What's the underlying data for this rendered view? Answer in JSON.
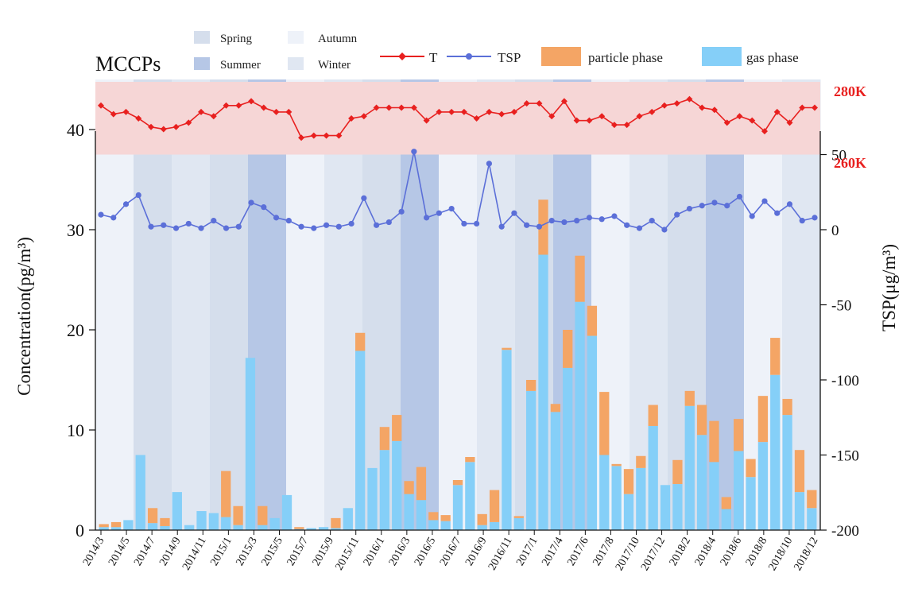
{
  "chart_data": {
    "type": "bar+line",
    "title": "MCCPs",
    "ylabel_left": "Concentration(pg/m³)",
    "ylabel_right": "TSP(μg/m³)",
    "ylim_left": [
      0,
      45
    ],
    "ylim_right": [
      -200,
      100
    ],
    "left_ticks": [
      "0",
      "10",
      "20",
      "30",
      "40"
    ],
    "right_ticks": [
      "-200",
      "-150",
      "-100",
      "-50",
      "0",
      "50"
    ],
    "temperature_band_labels": [
      "280K",
      "260K"
    ],
    "x_tick_labels": [
      "2014/3",
      "2014/5",
      "2014/7",
      "2014/9",
      "2014/11",
      "2015/1",
      "2015/3",
      "2015/5",
      "2015/7",
      "2015/9",
      "2015/11",
      "2016/1",
      "2016/3",
      "2016/5",
      "2016/7",
      "2016/9",
      "2016/11",
      "2017/1",
      "2017/4",
      "2017/6",
      "2017/8",
      "2017/10",
      "2017/12",
      "2018/2",
      "2018/4",
      "2018/6",
      "2018/8",
      "2018/10",
      "2018/12"
    ],
    "legend": {
      "seasons": [
        "Spring",
        "Summer",
        "Autumn",
        "Winter"
      ],
      "series": [
        "T",
        "TSP",
        "particle phase",
        "gas phase"
      ]
    },
    "colors": {
      "T": "#e8201f",
      "TSP": "#5b6fd8",
      "particle": "#f4a565",
      "gas": "#85cff8",
      "temp_band": "#f6d6d6",
      "spring": "#d5deec",
      "summer": "#b6c7e6",
      "autumn": "#eef2f9",
      "winter": "#e0e7f2"
    },
    "season_sequence": [
      "autumn",
      "spring",
      "winter",
      "spring",
      "summer",
      "autumn",
      "winter",
      "spring",
      "summer",
      "autumn",
      "winter",
      "spring",
      "summer",
      "autumn",
      "winter",
      "spring",
      "summer",
      "autumn",
      "winter"
    ],
    "stacked_bars": {
      "gas_phase": [
        0.3,
        0.3,
        1.0,
        7.5,
        0.7,
        0.4,
        3.8,
        0.5,
        1.9,
        1.7,
        1.3,
        0.5,
        17.2,
        0.5,
        1.2,
        3.5,
        0.1,
        0.2,
        0.3,
        0.2,
        2.2,
        17.9,
        6.2,
        8.0,
        8.9,
        3.6,
        3.0,
        1.0,
        0.9,
        4.5,
        6.8,
        0.5,
        0.8,
        18.0,
        1.2,
        13.9,
        27.5,
        11.8,
        16.2,
        22.8,
        19.4,
        7.5,
        6.4,
        3.6,
        6.2,
        10.4,
        4.5,
        4.6,
        12.4,
        9.5,
        6.8,
        2.1,
        7.9,
        5.3,
        8.8,
        15.5,
        11.5,
        3.8,
        2.2
      ],
      "particle_phase": [
        0.3,
        0.5,
        0,
        0,
        1.5,
        0.8,
        0,
        0,
        0,
        0,
        4.6,
        1.9,
        0,
        1.9,
        0,
        0,
        0.2,
        0,
        0,
        1.0,
        0,
        1.8,
        0,
        2.3,
        2.6,
        1.3,
        3.3,
        0.8,
        0.6,
        0.5,
        0.5,
        1.1,
        3.2,
        0.2,
        0.2,
        1.1,
        5.5,
        0.8,
        3.8,
        4.6,
        3.0,
        6.3,
        0.2,
        2.5,
        1.2,
        2.1,
        0,
        2.4,
        1.5,
        3.0,
        4.1,
        1.2,
        3.2,
        1.8,
        4.6,
        3.7,
        1.6,
        4.2,
        1.8
      ]
    },
    "TSP": [
      10,
      8,
      17,
      23,
      2,
      3,
      1,
      4,
      1,
      6,
      1,
      2,
      18,
      15,
      8,
      6,
      2,
      1,
      3,
      2,
      4,
      21,
      3,
      5,
      12,
      52,
      8,
      11,
      14,
      4,
      4,
      44,
      2,
      11,
      3,
      2,
      6,
      5,
      6,
      8,
      7,
      9,
      3,
      1,
      6,
      0,
      10,
      14,
      16,
      18,
      16,
      22,
      9,
      19,
      11,
      17,
      6,
      8
    ],
    "T": [
      71,
      67,
      68,
      65,
      61,
      60,
      61,
      63,
      68,
      66,
      71,
      71,
      73,
      70,
      68,
      68,
      56,
      57,
      57,
      57,
      65,
      66,
      70,
      70,
      70,
      70,
      64,
      68,
      68,
      68,
      65,
      68,
      67,
      68,
      72,
      72,
      66,
      73,
      64,
      64,
      66,
      62,
      62,
      66,
      68,
      71,
      72,
      74,
      70,
      69,
      63,
      66,
      64,
      59,
      68,
      63,
      70,
      70
    ],
    "T_min_K": 260,
    "T_max_K": 280
  }
}
